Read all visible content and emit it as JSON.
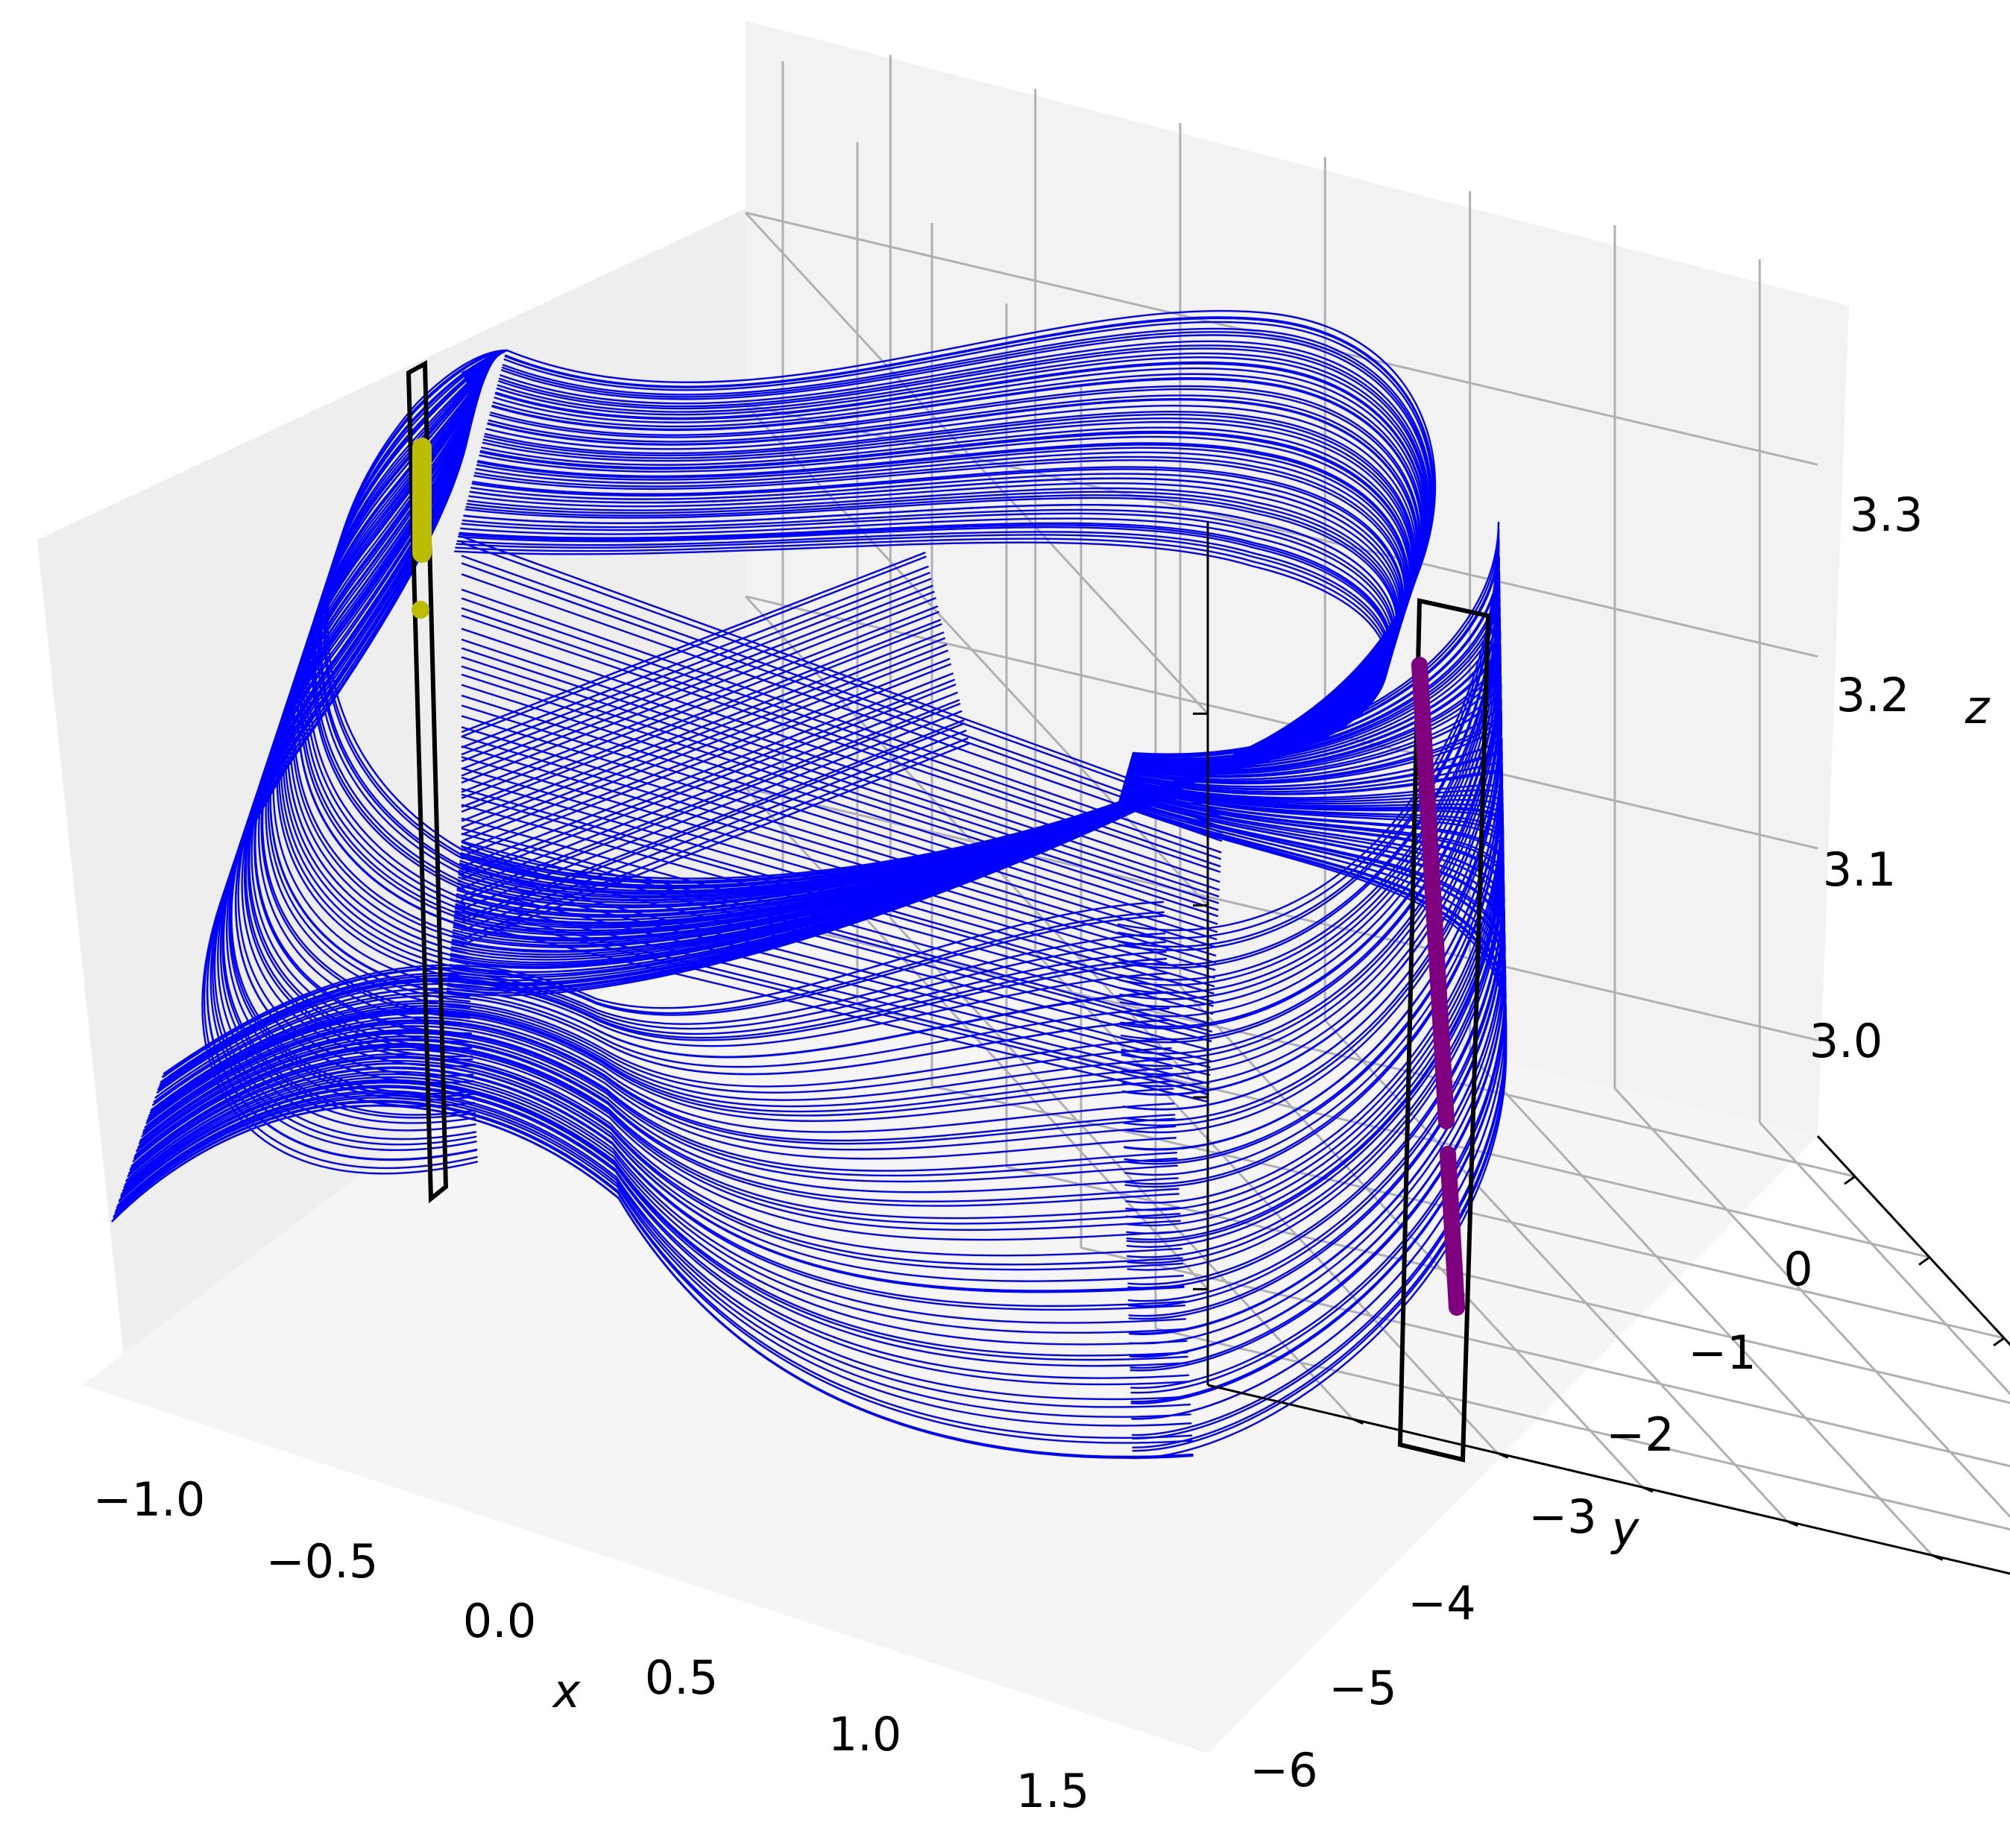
{
  "chart_data": {
    "type": "line",
    "projection": "3d",
    "title": "",
    "xlabel": "x",
    "ylabel": "y",
    "zlabel": "z",
    "xlim": [
      -1.25,
      1.85
    ],
    "ylim": [
      -6.4,
      1.0
    ],
    "zlim": [
      2.95,
      3.4
    ],
    "x_ticks": [
      -1.0,
      -0.5,
      0.0,
      0.5,
      1.0,
      1.5
    ],
    "x_tick_labels": [
      "−1.0",
      "−0.5",
      "0.0",
      "0.5",
      "1.0",
      "1.5"
    ],
    "y_ticks": [
      -6,
      -5,
      -4,
      -3,
      -2,
      -1,
      0
    ],
    "y_tick_labels": [
      "−6",
      "−5",
      "−4",
      "−3",
      "−2",
      "−1",
      "0"
    ],
    "z_ticks": [
      3.0,
      3.1,
      3.2,
      3.3
    ],
    "z_tick_labels": [
      "3.0",
      "3.1",
      "3.2",
      "3.3"
    ],
    "grid": true,
    "series": [
      {
        "kind": "trajectory",
        "color": "#0000ff"
      },
      {
        "kind": "section-points",
        "color": "#bcbc00"
      },
      {
        "kind": "section-points",
        "color": "#7f007f"
      },
      {
        "kind": "section-plane",
        "color": "#000000"
      },
      {
        "kind": "section-plane",
        "color": "#000000"
      }
    ]
  }
}
